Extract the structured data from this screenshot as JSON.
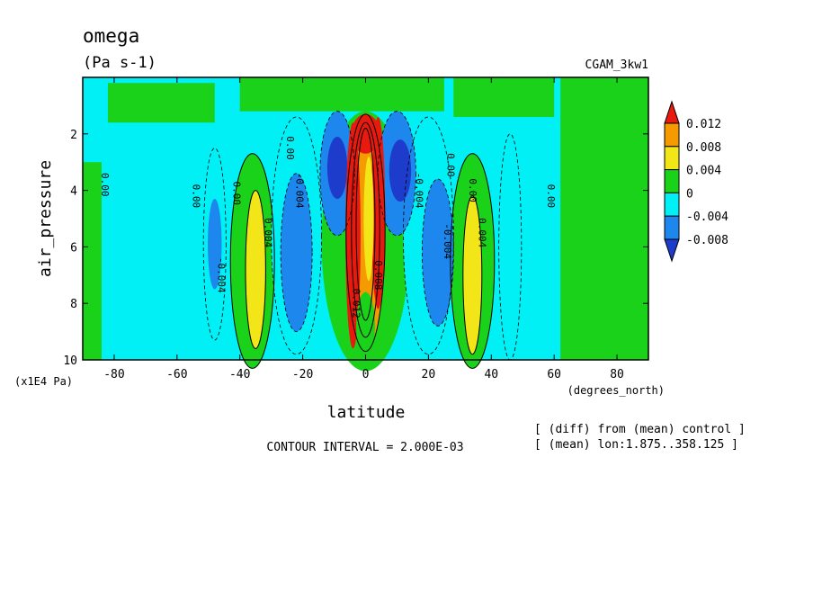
{
  "chart_data": {
    "type": "contour",
    "title": "omega",
    "units": "(Pa s-1)",
    "dataset": "CGAM_3kw1",
    "xlabel": "latitude",
    "x_units": "(degrees_north)",
    "ylabel": "air_pressure",
    "y_units": "(x1E4 Pa)",
    "xlim": [
      -90,
      90
    ],
    "ylim": [
      10,
      0
    ],
    "x_ticks": [
      "-80",
      "-60",
      "-40",
      "-20",
      "0",
      "20",
      "40",
      "60",
      "80"
    ],
    "y_ticks": [
      "2",
      "4",
      "6",
      "8",
      "10"
    ],
    "contour_interval": "CONTOUR INTERVAL = 2.000E-03",
    "notes": [
      "[ (diff) from (mean) control ]",
      "[ (mean) lon:1.875..358.125 ]"
    ],
    "colorbar": {
      "labels": [
        "0.012",
        "0.008",
        "0.004",
        "0",
        "-0.004",
        "-0.008"
      ],
      "colors": [
        "#e8190f",
        "#f59a00",
        "#f2e619",
        "#19d219",
        "#00f0f5",
        "#1e87ee",
        "#1e3ccc"
      ]
    },
    "contour_labels": [
      {
        "text": "0.00",
        "lat": -84,
        "p": 3.8
      },
      {
        "text": "0.00",
        "lat": -55,
        "p": 4.2
      },
      {
        "text": "0.00",
        "lat": -42,
        "p": 4.1
      },
      {
        "text": "0.00",
        "lat": -25,
        "p": 2.5
      },
      {
        "text": "0.00",
        "lat": 26,
        "p": 3.1
      },
      {
        "text": "0.00",
        "lat": 33,
        "p": 4.0
      },
      {
        "text": "0.00",
        "lat": 58,
        "p": 4.2
      },
      {
        "text": "-0.004",
        "lat": -47,
        "p": 7.0
      },
      {
        "text": "-0.004",
        "lat": -22,
        "p": 4.0
      },
      {
        "text": "-0.004",
        "lat": 16,
        "p": 4.0
      },
      {
        "text": "-0.004",
        "lat": 25,
        "p": 5.8
      },
      {
        "text": "0.004",
        "lat": -32,
        "p": 5.5
      },
      {
        "text": "0.004",
        "lat": 36,
        "p": 5.5
      },
      {
        "text": "0.012",
        "lat": -4,
        "p": 8.0
      },
      {
        "text": "0.008",
        "lat": 3,
        "p": 7.0
      }
    ]
  }
}
